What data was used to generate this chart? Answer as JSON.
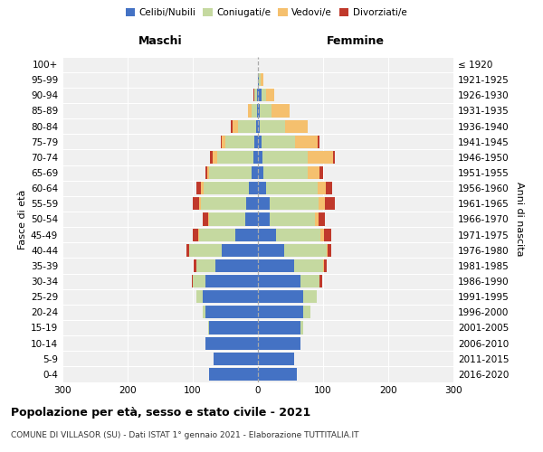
{
  "age_groups": [
    "0-4",
    "5-9",
    "10-14",
    "15-19",
    "20-24",
    "25-29",
    "30-34",
    "35-39",
    "40-44",
    "45-49",
    "50-54",
    "55-59",
    "60-64",
    "65-69",
    "70-74",
    "75-79",
    "80-84",
    "85-89",
    "90-94",
    "95-99",
    "100+"
  ],
  "birth_years": [
    "2016-2020",
    "2011-2015",
    "2006-2010",
    "2001-2005",
    "1996-2000",
    "1991-1995",
    "1986-1990",
    "1981-1985",
    "1976-1980",
    "1971-1975",
    "1966-1970",
    "1961-1965",
    "1956-1960",
    "1951-1955",
    "1946-1950",
    "1941-1945",
    "1936-1940",
    "1931-1935",
    "1926-1930",
    "1921-1925",
    "≤ 1920"
  ],
  "males_celibi": [
    75,
    68,
    80,
    75,
    80,
    85,
    80,
    65,
    55,
    35,
    20,
    18,
    14,
    10,
    7,
    5,
    3,
    2,
    2,
    0,
    0
  ],
  "males_coniugati": [
    0,
    0,
    0,
    2,
    5,
    10,
    20,
    30,
    50,
    55,
    55,
    70,
    70,
    65,
    55,
    45,
    28,
    8,
    3,
    0,
    0
  ],
  "males_vedovi": [
    0,
    0,
    0,
    0,
    0,
    0,
    0,
    0,
    0,
    2,
    2,
    2,
    3,
    3,
    8,
    5,
    8,
    5,
    0,
    0,
    0
  ],
  "males_divorziati": [
    0,
    0,
    0,
    0,
    0,
    0,
    2,
    3,
    5,
    8,
    8,
    10,
    8,
    3,
    3,
    2,
    2,
    0,
    2,
    0,
    0
  ],
  "females_celibi": [
    60,
    55,
    65,
    65,
    70,
    70,
    65,
    55,
    40,
    28,
    18,
    18,
    12,
    9,
    7,
    5,
    3,
    3,
    5,
    2,
    0
  ],
  "females_coniugati": [
    0,
    0,
    0,
    5,
    10,
    20,
    30,
    45,
    65,
    68,
    70,
    75,
    80,
    68,
    70,
    52,
    38,
    18,
    8,
    2,
    0
  ],
  "females_vedovi": [
    0,
    0,
    0,
    0,
    0,
    0,
    0,
    2,
    2,
    5,
    5,
    10,
    12,
    18,
    38,
    35,
    35,
    28,
    12,
    5,
    0
  ],
  "females_divorziati": [
    0,
    0,
    0,
    0,
    0,
    0,
    3,
    3,
    5,
    12,
    10,
    15,
    10,
    5,
    3,
    2,
    0,
    0,
    0,
    0,
    0
  ],
  "colors": {
    "celibi": "#4472C4",
    "coniugati": "#C5D9A0",
    "vedovi": "#F5C06E",
    "divorziati": "#C0392B"
  },
  "title": "Popolazione per età, sesso e stato civile - 2021",
  "subtitle": "COMUNE DI VILLASOR (SU) - Dati ISTAT 1° gennaio 2021 - Elaborazione TUTTITALIA.IT",
  "xlabel_left": "Maschi",
  "xlabel_right": "Femmine",
  "ylabel": "Fasce di età",
  "ylabel_right": "Anni di nascita",
  "xlim": 300,
  "bg_color": "#f0f0f0"
}
